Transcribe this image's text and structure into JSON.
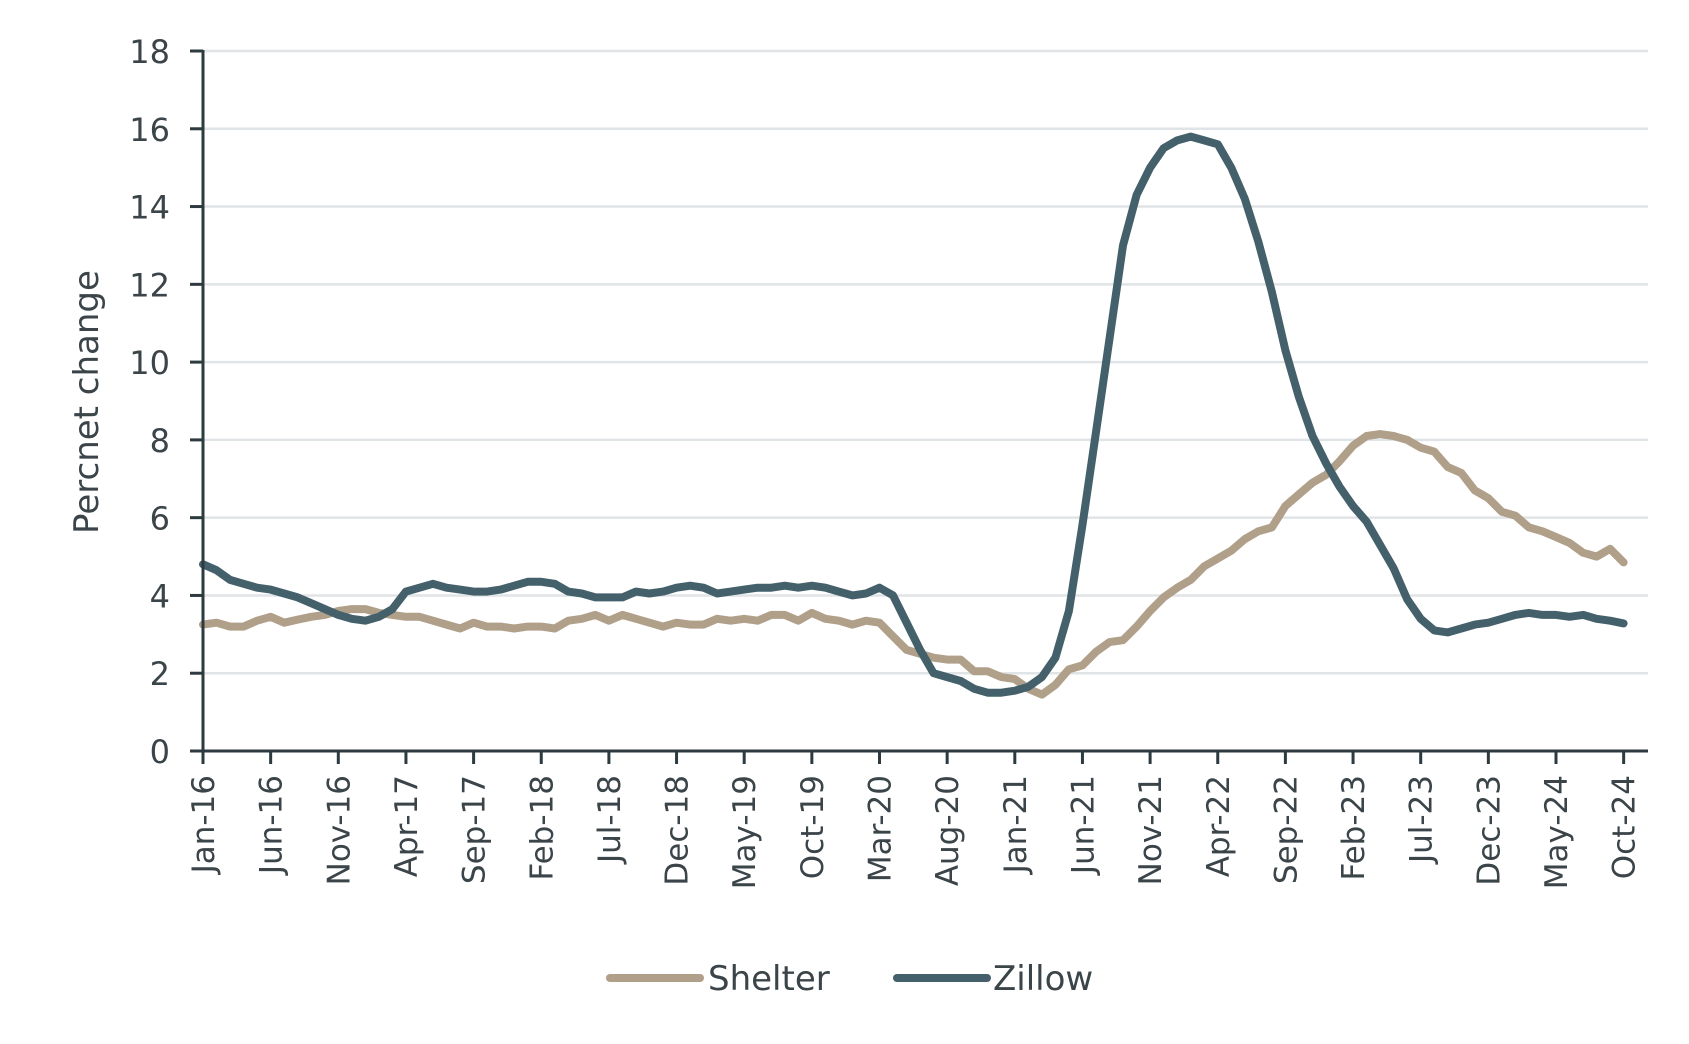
{
  "chart_data": {
    "type": "line",
    "title": "",
    "xlabel": "",
    "ylabel": "Percnet change",
    "ylim": [
      0,
      18
    ],
    "yticks": [
      0,
      2,
      4,
      6,
      8,
      10,
      12,
      14,
      16,
      18
    ],
    "grid": true,
    "legend_position": "bottom",
    "x_start": "Jan-16",
    "x_end": "Oct-24",
    "x_frequency": "monthly",
    "xtick_labels": [
      "Jan-16",
      "Jun-16",
      "Nov-16",
      "Apr-17",
      "Sep-17",
      "Feb-18",
      "Jul-18",
      "Dec-18",
      "May-19",
      "Oct-19",
      "Mar-20",
      "Aug-20",
      "Jan-21",
      "Jun-21",
      "Nov-21",
      "Apr-22",
      "Sep-22",
      "Feb-23",
      "Jul-23",
      "Dec-23",
      "May-24",
      "Oct-24"
    ],
    "series": [
      {
        "name": "Shelter",
        "color": "#b09f89",
        "values": [
          3.25,
          3.3,
          3.2,
          3.2,
          3.35,
          3.45,
          3.3,
          3.38,
          3.45,
          3.5,
          3.6,
          3.65,
          3.65,
          3.55,
          3.5,
          3.45,
          3.45,
          3.35,
          3.25,
          3.15,
          3.3,
          3.2,
          3.2,
          3.15,
          3.2,
          3.2,
          3.15,
          3.35,
          3.4,
          3.5,
          3.35,
          3.5,
          3.4,
          3.3,
          3.2,
          3.3,
          3.25,
          3.25,
          3.4,
          3.35,
          3.4,
          3.35,
          3.5,
          3.5,
          3.35,
          3.55,
          3.4,
          3.35,
          3.25,
          3.35,
          3.3,
          2.95,
          2.6,
          2.5,
          2.4,
          2.35,
          2.35,
          2.05,
          2.05,
          1.9,
          1.85,
          1.6,
          1.45,
          1.7,
          2.1,
          2.2,
          2.55,
          2.8,
          2.85,
          3.2,
          3.6,
          3.95,
          4.2,
          4.4,
          4.75,
          4.95,
          5.15,
          5.45,
          5.65,
          5.75,
          6.3,
          6.6,
          6.9,
          7.1,
          7.45,
          7.85,
          8.1,
          8.15,
          8.1,
          8.0,
          7.8,
          7.7,
          7.3,
          7.15,
          6.7,
          6.5,
          6.15,
          6.05,
          5.75,
          5.65,
          5.5,
          5.35,
          5.1,
          5.0,
          5.2,
          4.85
        ]
      },
      {
        "name": "Zillow",
        "color": "#44606b",
        "values": [
          4.8,
          4.65,
          4.4,
          4.3,
          4.2,
          4.15,
          4.05,
          3.95,
          3.8,
          3.65,
          3.5,
          3.4,
          3.35,
          3.45,
          3.65,
          4.1,
          4.2,
          4.3,
          4.2,
          4.15,
          4.1,
          4.1,
          4.15,
          4.25,
          4.35,
          4.35,
          4.3,
          4.1,
          4.05,
          3.95,
          3.95,
          3.95,
          4.1,
          4.05,
          4.1,
          4.2,
          4.25,
          4.2,
          4.05,
          4.1,
          4.15,
          4.2,
          4.2,
          4.25,
          4.2,
          4.25,
          4.2,
          4.1,
          4.0,
          4.05,
          4.2,
          4.0,
          3.3,
          2.6,
          2.0,
          1.9,
          1.8,
          1.6,
          1.5,
          1.5,
          1.55,
          1.65,
          1.9,
          2.4,
          3.6,
          5.8,
          8.2,
          10.6,
          13.0,
          14.3,
          15.0,
          15.5,
          15.7,
          15.8,
          15.7,
          15.6,
          15.0,
          14.2,
          13.1,
          11.8,
          10.3,
          9.1,
          8.1,
          7.4,
          6.8,
          6.3,
          5.9,
          5.3,
          4.7,
          3.9,
          3.4,
          3.1,
          3.05,
          3.15,
          3.25,
          3.3,
          3.4,
          3.5,
          3.55,
          3.5,
          3.5,
          3.45,
          3.5,
          3.4,
          3.35,
          3.28
        ]
      }
    ]
  },
  "colors": {
    "axis": "#2d3a40",
    "grid": "#e0e4e6",
    "text": "#3a4449"
  }
}
